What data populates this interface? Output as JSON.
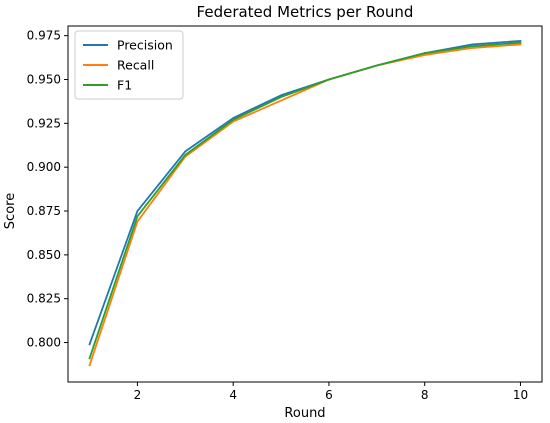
{
  "chart_data": {
    "type": "line",
    "title": "Federated Metrics per Round",
    "xlabel": "Round",
    "ylabel": "Score",
    "x": [
      1,
      2,
      3,
      4,
      5,
      6,
      7,
      8,
      9,
      10
    ],
    "xlim": [
      0.55,
      10.45
    ],
    "ylim": [
      0.7775,
      0.9805
    ],
    "xticks": [
      2,
      4,
      6,
      8,
      10
    ],
    "yticks": [
      0.8,
      0.825,
      0.85,
      0.875,
      0.9,
      0.925,
      0.95,
      0.975
    ],
    "ytick_labels": [
      "0.800",
      "0.825",
      "0.850",
      "0.875",
      "0.900",
      "0.925",
      "0.950",
      "0.975"
    ],
    "grid": false,
    "legend_position": "top-left",
    "series": [
      {
        "name": "Precision",
        "color": "#1f77b4",
        "values": [
          0.799,
          0.875,
          0.909,
          0.928,
          0.941,
          0.95,
          0.958,
          0.965,
          0.97,
          0.972
        ]
      },
      {
        "name": "Recall",
        "color": "#ff7f0e",
        "values": [
          0.787,
          0.869,
          0.906,
          0.926,
          0.938,
          0.95,
          0.958,
          0.964,
          0.968,
          0.97
        ]
      },
      {
        "name": "F1",
        "color": "#2ca02c",
        "values": [
          0.791,
          0.872,
          0.907,
          0.927,
          0.94,
          0.95,
          0.958,
          0.965,
          0.969,
          0.971
        ]
      }
    ]
  }
}
